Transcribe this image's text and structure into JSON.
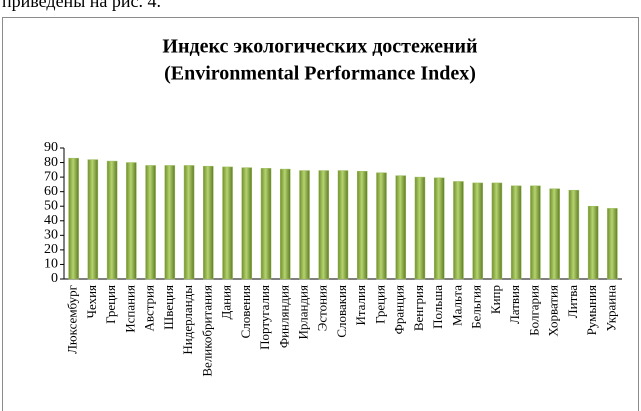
{
  "document_text": "приведены на рис. 4.",
  "chart_data": {
    "type": "bar",
    "title": "Индекс экологических достежений",
    "subtitle": "(Environmental Performance Index)",
    "categories": [
      "Люксембург",
      "Чехия",
      "Греция",
      "Испания",
      "Австрия",
      "Швеция",
      "Нидерланды",
      "Великобритания",
      "Дания",
      "Словения",
      "Португалия",
      "Финляндия",
      "Ирландия",
      "Эстония",
      "Словакия",
      "Италия",
      "Греция",
      "Франция",
      "Венгрия",
      "Польша",
      "Мальта",
      "Бельгия",
      "Кипр",
      "Латвия",
      "Болгария",
      "Хорватия",
      "Литва",
      "Румыния",
      "Украина"
    ],
    "values": [
      83,
      82,
      81,
      80,
      78,
      78,
      78,
      77.5,
      77,
      76.5,
      76,
      75.5,
      74.5,
      74.5,
      74.5,
      74,
      73,
      71,
      70,
      69.5,
      67,
      66,
      66,
      64,
      64,
      62,
      61,
      50,
      48.5
    ],
    "color": "#9bbb59",
    "ylim": [
      0,
      90
    ],
    "yticks": [
      0,
      10,
      20,
      30,
      40,
      50,
      60,
      70,
      80,
      90
    ],
    "grid": false
  }
}
